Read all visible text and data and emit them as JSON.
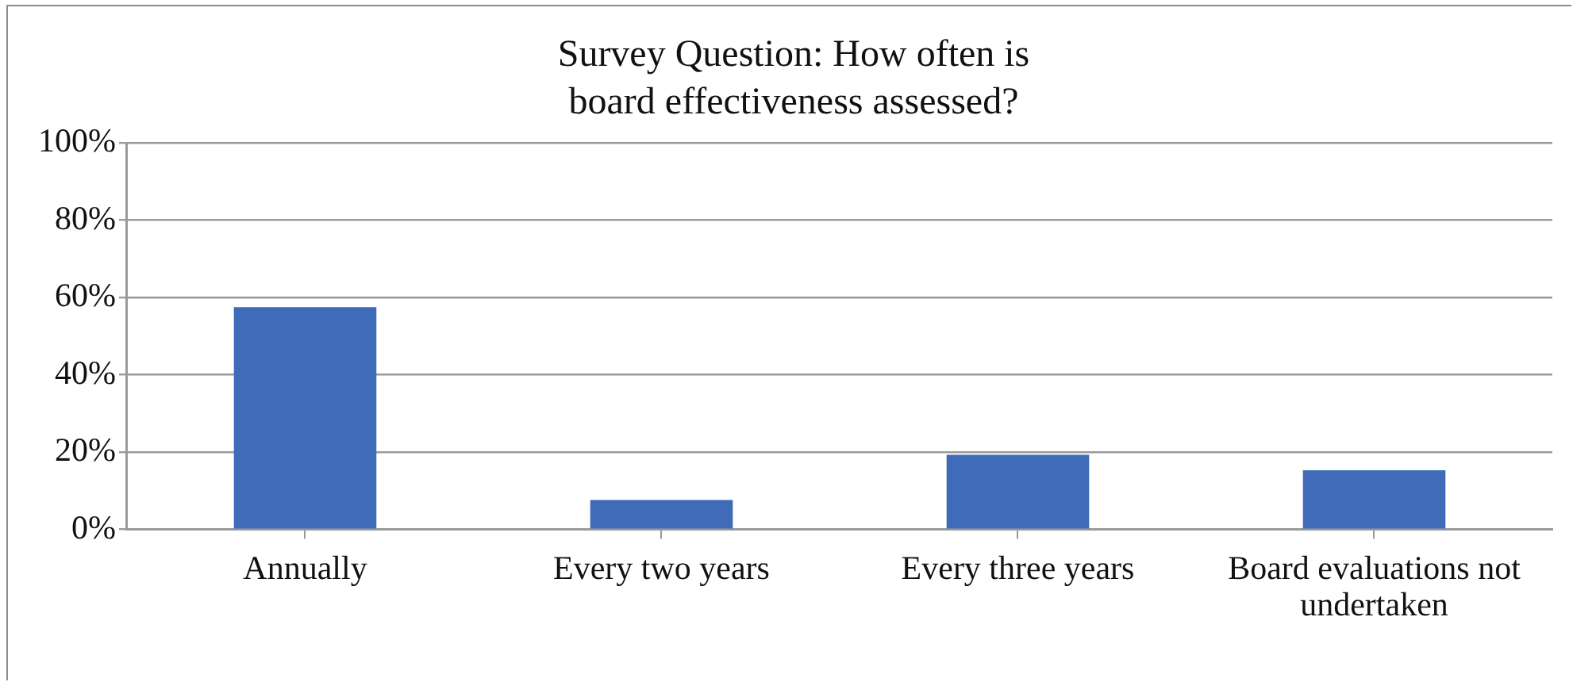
{
  "chart_data": {
    "type": "bar",
    "title": "Survey Question: How often is board effectiveness assessed?",
    "categories": [
      "Annually",
      "Every two years",
      "Every three years",
      "Board evaluations not undertaken"
    ],
    "values": [
      57.5,
      7.6,
      19.3,
      15.3
    ],
    "color": "#3f6bb9",
    "ylim": [
      0,
      100
    ],
    "yticks": [
      {
        "value": 0,
        "label": "0%"
      },
      {
        "value": 20,
        "label": "20%"
      },
      {
        "value": 40,
        "label": "40%"
      },
      {
        "value": 60,
        "label": "60%"
      },
      {
        "value": 80,
        "label": "80%"
      },
      {
        "value": 100,
        "label": "100%"
      }
    ],
    "grid": "y",
    "legend": false
  }
}
